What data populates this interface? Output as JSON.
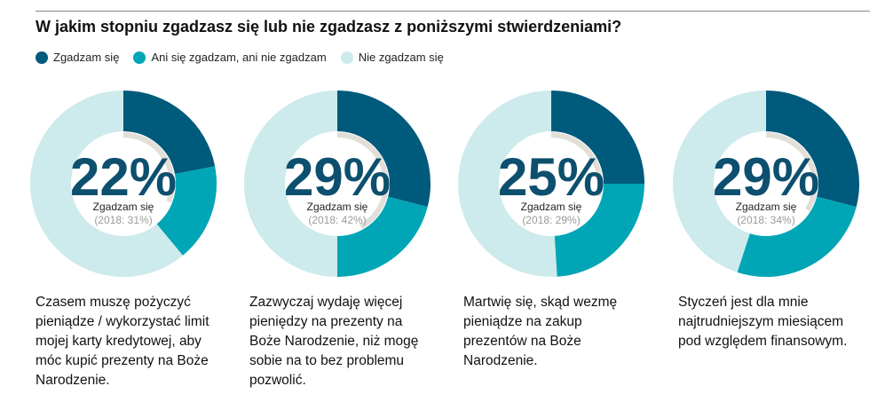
{
  "title": "W jakim stopniu zgadzasz się lub nie zgadzasz z poniższymi stwierdzeniami?",
  "legend": [
    {
      "label": "Zgadzam się",
      "color": "#005a7c"
    },
    {
      "label": "Ani się zgadzam, ani nie zgadzam",
      "color": "#00a6b5"
    },
    {
      "label": "Nie zgadzam się",
      "color": "#cdeaec"
    }
  ],
  "colors": {
    "agree": "#005a7c",
    "neutral": "#00a6b5",
    "disagree": "#cdeaec",
    "inner_arc": "#e2ded8",
    "big_number": "#0d4f6e",
    "prev_text": "#9a9a9a"
  },
  "chart_data": [
    {
      "type": "pie",
      "big_label": "22%",
      "sub_label": "Zgadzam się",
      "prev_label": "(2018: 31%)",
      "categories": [
        "Zgadzam się",
        "Ani się zgadzam, ani nie zgadzam",
        "Nie zgadzam się"
      ],
      "values": [
        22,
        17,
        61
      ],
      "inner_arc_value": 31,
      "caption": [
        "Czasem muszę pożyczyć",
        "pieniądze / wykorzystać limit",
        "mojej karty kredytowej, aby",
        "móc kupić prezenty na Boże",
        "Narodzenie."
      ]
    },
    {
      "type": "pie",
      "big_label": "29%",
      "sub_label": "Zgadzam się",
      "prev_label": "(2018: 42%)",
      "categories": [
        "Zgadzam się",
        "Ani się zgadzam, ani nie zgadzam",
        "Nie zgadzam się"
      ],
      "values": [
        29,
        21,
        50
      ],
      "inner_arc_value": 42,
      "caption": [
        "Zazwyczaj wydaję więcej",
        "pieniędzy na prezenty na",
        "Boże Narodzenie, niż mogę",
        "sobie na to bez problemu",
        "pozwolić."
      ]
    },
    {
      "type": "pie",
      "big_label": "25%",
      "sub_label": "Zgadzam się",
      "prev_label": "(2018: 29%)",
      "categories": [
        "Zgadzam się",
        "Ani się zgadzam, ani nie zgadzam",
        "Nie zgadzam się"
      ],
      "values": [
        25,
        24,
        51
      ],
      "inner_arc_value": 29,
      "caption": [
        "Martwię się, skąd wezmę",
        "pieniądze na zakup",
        "prezentów na Boże",
        "Narodzenie."
      ]
    },
    {
      "type": "pie",
      "big_label": "29%",
      "sub_label": "Zgadzam się",
      "prev_label": "(2018: 34%)",
      "categories": [
        "Zgadzam się",
        "Ani się zgadzam, ani nie zgadzam",
        "Nie zgadzam się"
      ],
      "values": [
        29,
        26,
        45
      ],
      "inner_arc_value": 34,
      "caption": [
        "Styczeń jest dla mnie",
        "najtrudniejszym miesiącem",
        "pod względem finansowym."
      ]
    }
  ]
}
